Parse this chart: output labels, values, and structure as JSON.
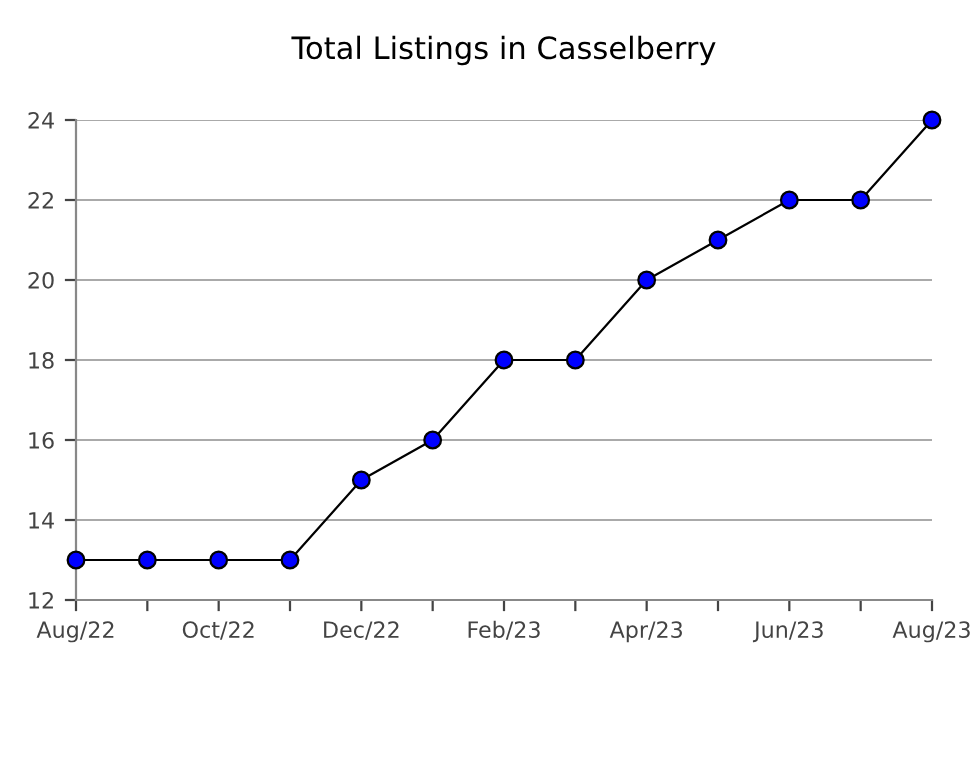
{
  "chart_data": {
    "type": "line",
    "title": "Total Listings in Casselberry",
    "categories": [
      "Aug/22",
      null,
      "Oct/22",
      null,
      "Dec/22",
      null,
      "Feb/23",
      null,
      "Apr/23",
      null,
      "Jun/23",
      null,
      "Aug/23"
    ],
    "series": [
      {
        "color": "#0000ff",
        "values": [
          13,
          13,
          13,
          13,
          15,
          16,
          18,
          18,
          20,
          21,
          22,
          22,
          24
        ]
      }
    ],
    "ylim": [
      12,
      24
    ],
    "yticks": [
      12,
      14,
      16,
      18,
      20,
      22,
      24
    ],
    "grid": "y",
    "marker": "circle",
    "line_style": "solid"
  }
}
